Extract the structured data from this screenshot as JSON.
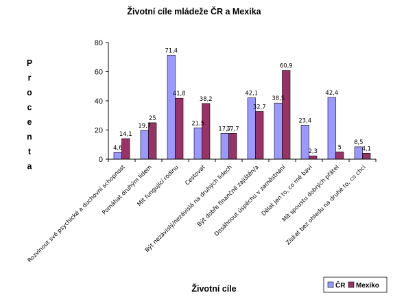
{
  "chart_data": {
    "type": "bar",
    "title": "Životní cíle mládeže ČR a Mexika",
    "xlabel": "Životní cíle",
    "ylabel": "Procenta",
    "ylim": [
      0,
      80
    ],
    "yticks": [
      0,
      20,
      40,
      60,
      80
    ],
    "grid": false,
    "legend_position": "bottom-right",
    "categories": [
      "Rozvinout své psychické a duchovní schopnost",
      "Pomáhat druhým lidem",
      "Mít fungující rodinu",
      "Cestovat",
      "Být nezávislý/nezávislá na druhých lidech",
      "Být dobře finančně zajištěn/a",
      "Dosáhnout úspěchu v zaměstnání",
      "Dělat jen to, co mě baví",
      "Mít spoustu dobrých přátel",
      "Získat bez ohledu na druhé to, co chci"
    ],
    "series": [
      {
        "name": "ČR",
        "color": "#9999FF",
        "values": [
          4.6,
          19.7,
          71.4,
          21.5,
          17.7,
          42.1,
          38.5,
          23.4,
          42.4,
          8.5
        ],
        "labels": [
          "4,6",
          "19,7",
          "71,4",
          "21,5",
          "17,7",
          "42,1",
          "38,5",
          "23,4",
          "42,4",
          "8,5"
        ]
      },
      {
        "name": "Mexiko",
        "color": "#993366",
        "values": [
          14.1,
          25,
          41.8,
          38.2,
          17.7,
          32.7,
          60.9,
          2.3,
          5,
          4.1
        ],
        "labels": [
          "14,1",
          "25",
          "41,8",
          "38,2",
          "17,7",
          "32,7",
          "60,9",
          "2,3",
          "5",
          "4,1"
        ]
      }
    ]
  }
}
